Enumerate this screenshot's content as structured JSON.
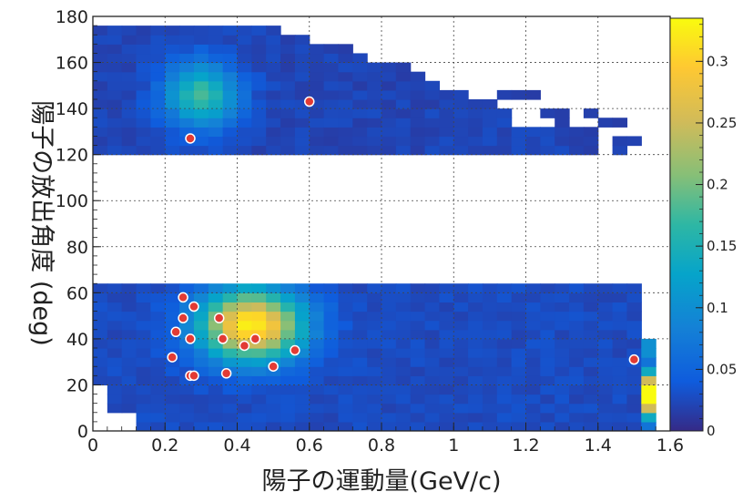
{
  "chart_data": {
    "type": "heatmap",
    "title": "",
    "xlabel": "陽子の運動量(GeV/c)",
    "ylabel": "陽子の放出角度 (deg)",
    "xlim": [
      0,
      1.6
    ],
    "ylim": [
      0,
      180
    ],
    "x_bin_width": 0.04,
    "y_bin_width": 4,
    "x_ticks": [
      0,
      0.2,
      0.4,
      0.6,
      0.8,
      1,
      1.2,
      1.4,
      1.6
    ],
    "x_tick_labels": [
      "0",
      "0.2",
      "0.4",
      "0.6",
      "0.8",
      "1",
      "1.2",
      "1.4",
      "1.6"
    ],
    "y_ticks": [
      0,
      20,
      40,
      60,
      80,
      100,
      120,
      140,
      160,
      180
    ],
    "y_tick_labels": [
      "0",
      "20",
      "40",
      "60",
      "80",
      "100",
      "120",
      "140",
      "160",
      "180"
    ],
    "grid": true,
    "colorbar": {
      "range": [
        0,
        0.335
      ],
      "ticks": [
        0,
        0.05,
        0.1,
        0.15,
        0.2,
        0.25,
        0.3
      ],
      "tick_labels": [
        "0",
        "0.05",
        "0.1",
        "0.15",
        "0.2",
        "0.25",
        "0.3"
      ]
    },
    "heatmap_regions": {
      "forward_band_angle": [
        0,
        62
      ],
      "backward_band_angle": [
        118,
        180
      ],
      "forward_hotspot": {
        "momentum": 0.42,
        "angle": 44,
        "value": 0.3
      },
      "backward_hotspot": {
        "momentum": 0.28,
        "angle": 144,
        "value": 0.15
      },
      "edge_column_momentum": [
        1.5,
        1.54
      ],
      "edge_column_peak": {
        "angle": 14,
        "value": 0.33
      }
    },
    "points": [
      {
        "x": 0.25,
        "y": 58
      },
      {
        "x": 0.28,
        "y": 54
      },
      {
        "x": 0.25,
        "y": 49
      },
      {
        "x": 0.35,
        "y": 49
      },
      {
        "x": 0.23,
        "y": 43
      },
      {
        "x": 0.27,
        "y": 40
      },
      {
        "x": 0.36,
        "y": 40
      },
      {
        "x": 0.45,
        "y": 40
      },
      {
        "x": 0.42,
        "y": 37
      },
      {
        "x": 0.56,
        "y": 35
      },
      {
        "x": 0.22,
        "y": 32
      },
      {
        "x": 0.5,
        "y": 28
      },
      {
        "x": 0.27,
        "y": 24
      },
      {
        "x": 0.28,
        "y": 24
      },
      {
        "x": 0.37,
        "y": 25
      },
      {
        "x": 1.5,
        "y": 31
      },
      {
        "x": 0.27,
        "y": 127
      },
      {
        "x": 0.6,
        "y": 143
      }
    ],
    "point_color": "#e23b34",
    "palette": [
      "#352a87",
      "#0f5cdd",
      "#1481d6",
      "#06a4ca",
      "#2eb7a4",
      "#87bf77",
      "#d1bb59",
      "#fec832",
      "#f9fb0e"
    ]
  }
}
